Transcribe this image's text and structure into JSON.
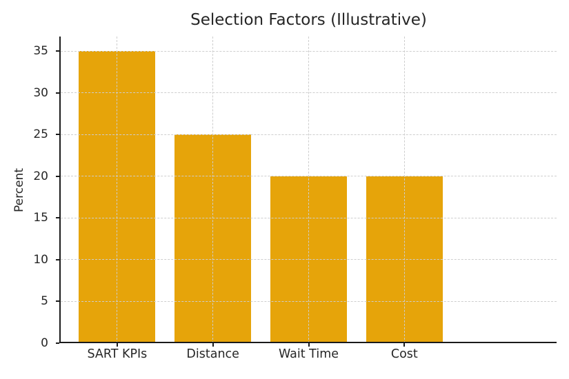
{
  "chart_data": {
    "type": "bar",
    "title": "Selection Factors (Illustrative)",
    "xlabel": "",
    "ylabel": "Percent",
    "categories": [
      "SART KPIs",
      "Distance",
      "Wait Time",
      "Cost"
    ],
    "values": [
      35,
      25,
      20,
      20
    ],
    "yticks": [
      0,
      5,
      10,
      15,
      20,
      25,
      30,
      35
    ],
    "ylim": [
      0,
      36.75
    ],
    "bar_color": "#E6A40A",
    "grid": true,
    "grid_color": "#cdcdcd",
    "grid_style": "dashed",
    "grid_above_bars": true,
    "axis_color": "#1a1a1a",
    "text_color": "#262626",
    "background_color": "#ffffff",
    "visible_spines": [
      "left",
      "bottom"
    ],
    "legend_position": "none"
  }
}
